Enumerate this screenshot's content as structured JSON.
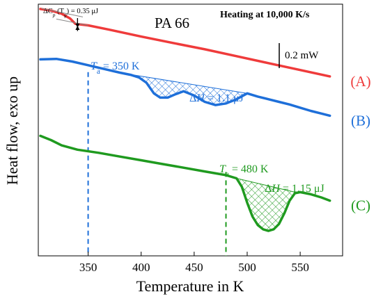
{
  "chart_data": {
    "type": "line",
    "title": "PA 66",
    "subtitle": "Heating at 10,000 K/s",
    "xlabel": "Temperature in K",
    "ylabel": "Heat flow, exo up",
    "xlim": [
      303,
      590
    ],
    "ylim": [
      -2.35,
      0.02
    ],
    "xticks": [
      350,
      400,
      450,
      500,
      550
    ],
    "grid": false,
    "scale_bar_label": "0.2 mW",
    "scale_bar_mw": 0.2,
    "series": [
      {
        "name": "(A)",
        "color": "#ef3b3b",
        "x": [
          305,
          315,
          325,
          333,
          338,
          342,
          350,
          370,
          400,
          430,
          460,
          490,
          520,
          550,
          578
        ],
        "y": [
          -0.025,
          -0.04,
          -0.07,
          -0.115,
          -0.165,
          -0.17,
          -0.18,
          -0.22,
          -0.285,
          -0.345,
          -0.405,
          -0.47,
          -0.535,
          -0.6,
          -0.66
        ]
      },
      {
        "name": "(B)",
        "color": "#1e6fd9",
        "x": [
          305,
          320,
          335,
          350,
          365,
          380,
          390,
          398,
          405,
          412,
          418,
          425,
          432,
          440,
          450,
          460,
          470,
          480,
          490,
          500,
          510,
          520,
          530,
          540,
          550,
          560,
          570,
          578
        ],
        "y": [
          -0.5,
          -0.495,
          -0.52,
          -0.555,
          -0.59,
          -0.625,
          -0.645,
          -0.67,
          -0.72,
          -0.82,
          -0.86,
          -0.86,
          -0.83,
          -0.8,
          -0.84,
          -0.9,
          -0.93,
          -0.915,
          -0.875,
          -0.82,
          -0.85,
          -0.875,
          -0.9,
          -0.925,
          -0.955,
          -0.985,
          -1.01,
          -1.03
        ]
      },
      {
        "name": "(C)",
        "color": "#1f9a1f",
        "x": [
          305,
          315,
          325,
          340,
          360,
          380,
          400,
          420,
          440,
          460,
          480,
          490,
          495,
          500,
          505,
          510,
          515,
          520,
          525,
          530,
          535,
          540,
          545,
          550,
          560,
          570,
          578
        ],
        "y": [
          -1.22,
          -1.26,
          -1.31,
          -1.35,
          -1.38,
          -1.415,
          -1.45,
          -1.485,
          -1.52,
          -1.555,
          -1.59,
          -1.62,
          -1.7,
          -1.85,
          -1.98,
          -2.06,
          -2.1,
          -2.115,
          -2.1,
          -2.05,
          -1.95,
          -1.83,
          -1.76,
          -1.75,
          -1.77,
          -1.8,
          -1.83
        ]
      }
    ],
    "reference_lines": [
      {
        "label_symbol": "T",
        "label_sub": "a",
        "label_value": "= 350 K",
        "x": 350,
        "color": "#1e6fd9",
        "y_top": -0.62,
        "y_bottom": -2.35
      },
      {
        "label_symbol": "T",
        "label_sub": "a",
        "label_value": "= 480 K",
        "x": 480,
        "color": "#1f9a1f",
        "y_top": -1.56,
        "y_bottom": -2.35
      }
    ],
    "shaded_areas": [
      {
        "series": "(B)",
        "x_from": 392,
        "x_to": 500,
        "baseline_y": [
          -0.645,
          -0.82
        ],
        "color": "#1e6fd9",
        "label_symbol": "ΔH",
        "label_value": "= 1.1 μJ"
      },
      {
        "series": "(C)",
        "x_from": 490,
        "x_to": 545,
        "baseline_y": [
          -1.62,
          -1.75
        ],
        "color": "#1f9a1f",
        "label_symbol": "ΔH",
        "label_value": "= 1.15 μJ"
      }
    ],
    "annotations": [
      {
        "text_prefix": "ΔC",
        "text_sub": "p",
        "text_mid": " (T",
        "text_sub2": "g",
        "text_suffix": ") = 0.35 μJ",
        "x": 340
      }
    ]
  }
}
